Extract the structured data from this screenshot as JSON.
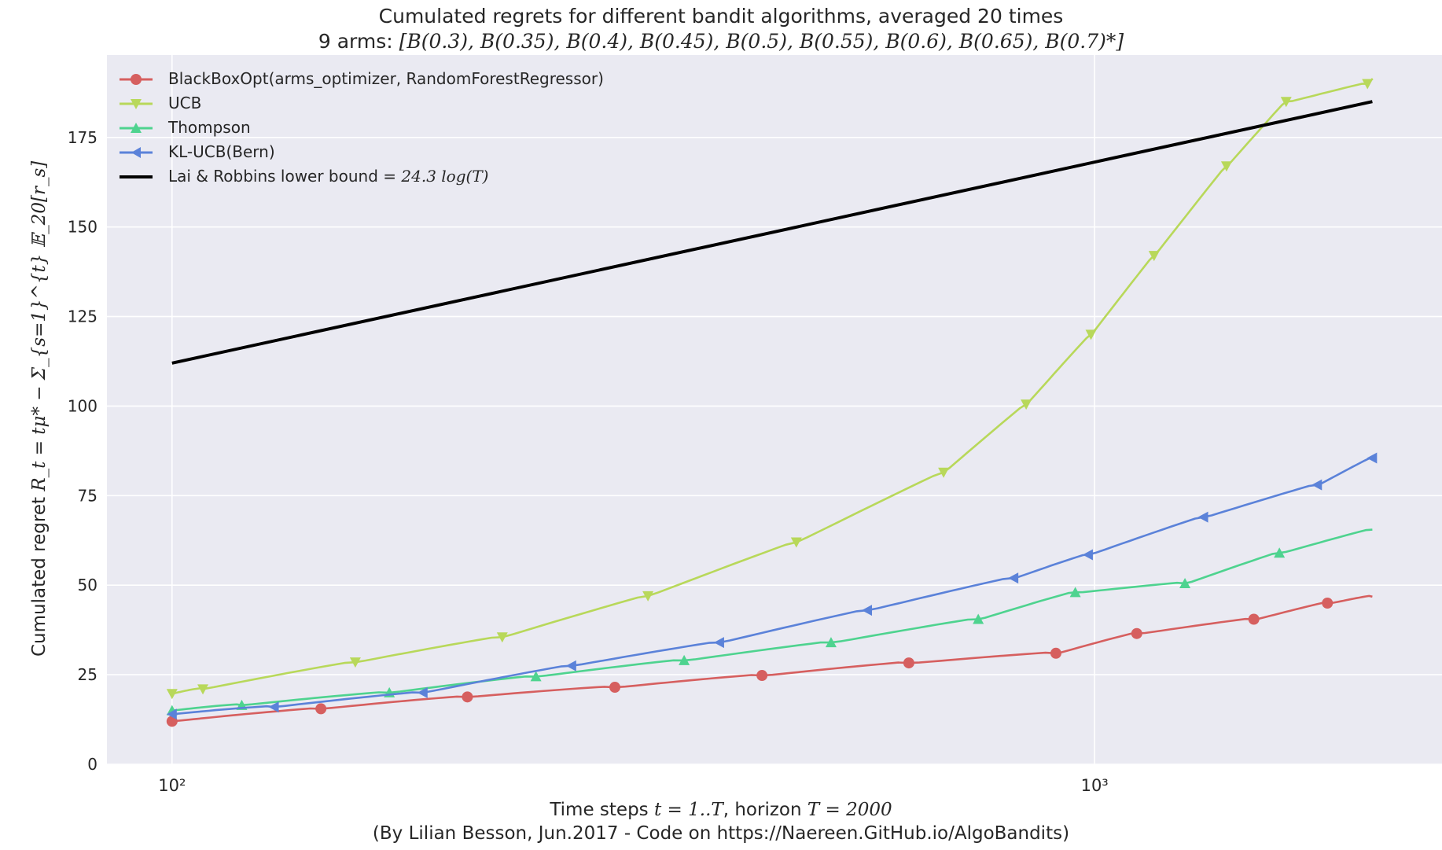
{
  "chart_data": {
    "type": "line",
    "title": "Cumulated regrets for different bandit algorithms, averaged 20 times",
    "subtitle": "9 arms: [B(0.3), B(0.35), B(0.4), B(0.45), B(0.5), B(0.55), B(0.6), B(0.65), B(0.7)*]",
    "subtitle_prefix": "9 arms: ",
    "subtitle_math": "[B(0.3), B(0.35), B(0.4), B(0.45), B(0.5), B(0.55), B(0.6), B(0.65), B(0.7)*]",
    "xlabel": "Time steps t = 1..T, horizon T = 2000",
    "xlabel_prefix": "Time steps ",
    "xlabel_math1": "t = 1..T",
    "xlabel_mid": ", horizon ",
    "xlabel_math2": "T = 2000",
    "credit": "(By Lilian Besson, Jun.2017 - Code on https://Naereen.GitHub.io/AlgoBandits)",
    "ylabel": "Cumulated regret R_t = tμ* - Σ_{s=1}^{t} E_20[r_s]",
    "ylabel_prefix": "Cumulated regret ",
    "ylabel_math": "R_t = tμ* − Σ_{s=1}^{t} 𝔼_20[r_s]",
    "xscale": "log",
    "xlim": [
      85,
      2380
    ],
    "ylim": [
      0,
      198
    ],
    "yticks": [
      0,
      25,
      50,
      75,
      100,
      125,
      150,
      175
    ],
    "ytick_labels": [
      "0",
      "25",
      "50",
      "75",
      "100",
      "125",
      "150",
      "175"
    ],
    "xticks": [
      100,
      1000
    ],
    "xtick_labels": [
      "10²",
      "10³"
    ],
    "grid": true,
    "legend_position": "top-left",
    "background": "#eaeaf2",
    "series": [
      {
        "name": "BlackBoxOpt(arms_optimizer, RandomForestRegressor)",
        "color": "#d65f5f",
        "marker": "circle",
        "x": [
          100,
          145,
          209,
          302,
          436,
          629,
          908,
          1111,
          1488,
          1788,
          2000
        ],
        "y": [
          12,
          15.5,
          18.8,
          21.5,
          24.8,
          28.3,
          31,
          36.5,
          40.5,
          45,
          46.8
        ]
      },
      {
        "name": "UCB",
        "color": "#b8d85a",
        "marker": "triangle-down",
        "x": [
          100,
          108,
          158,
          228,
          328,
          475,
          686,
          843,
          991,
          1160,
          1390,
          1613,
          1976,
          2000
        ],
        "y": [
          19.7,
          21,
          28.5,
          35.5,
          47,
          62,
          81.5,
          100.5,
          120,
          142,
          167,
          185,
          190,
          191
        ]
      },
      {
        "name": "Thompson",
        "color": "#4ed38f",
        "marker": "triangle-up",
        "x": [
          100,
          119,
          172,
          248,
          359,
          518,
          748,
          953,
          1253,
          1586,
          2000
        ],
        "y": [
          15,
          16.5,
          20,
          24.5,
          29,
          34,
          40.5,
          48,
          50.5,
          59,
          65.5
        ]
      },
      {
        "name": "KL-UCB(Bern)",
        "color": "#5b82d9",
        "marker": "triangle-left",
        "x": [
          100,
          129,
          187,
          271,
          392,
          567,
          817,
          984,
          1312,
          1743,
          2000
        ],
        "y": [
          14,
          16,
          20,
          27.5,
          34,
          43,
          52,
          58.5,
          69,
          78,
          85.5
        ]
      },
      {
        "name": "Lai & Robbins lower bound = 24.3 log(T)",
        "color": "#000000",
        "marker": "none",
        "x": [
          100,
          2000
        ],
        "y": [
          112,
          185
        ]
      }
    ]
  },
  "legend": {
    "entries": [
      {
        "label": "BlackBoxOpt(arms_optimizer, RandomForestRegressor)"
      },
      {
        "label": "UCB"
      },
      {
        "label": "Thompson"
      },
      {
        "label": "KL-UCB(Bern)"
      },
      {
        "label_prefix": "Lai & Robbins lower bound = ",
        "label_math": "24.3 log(T)"
      }
    ]
  }
}
